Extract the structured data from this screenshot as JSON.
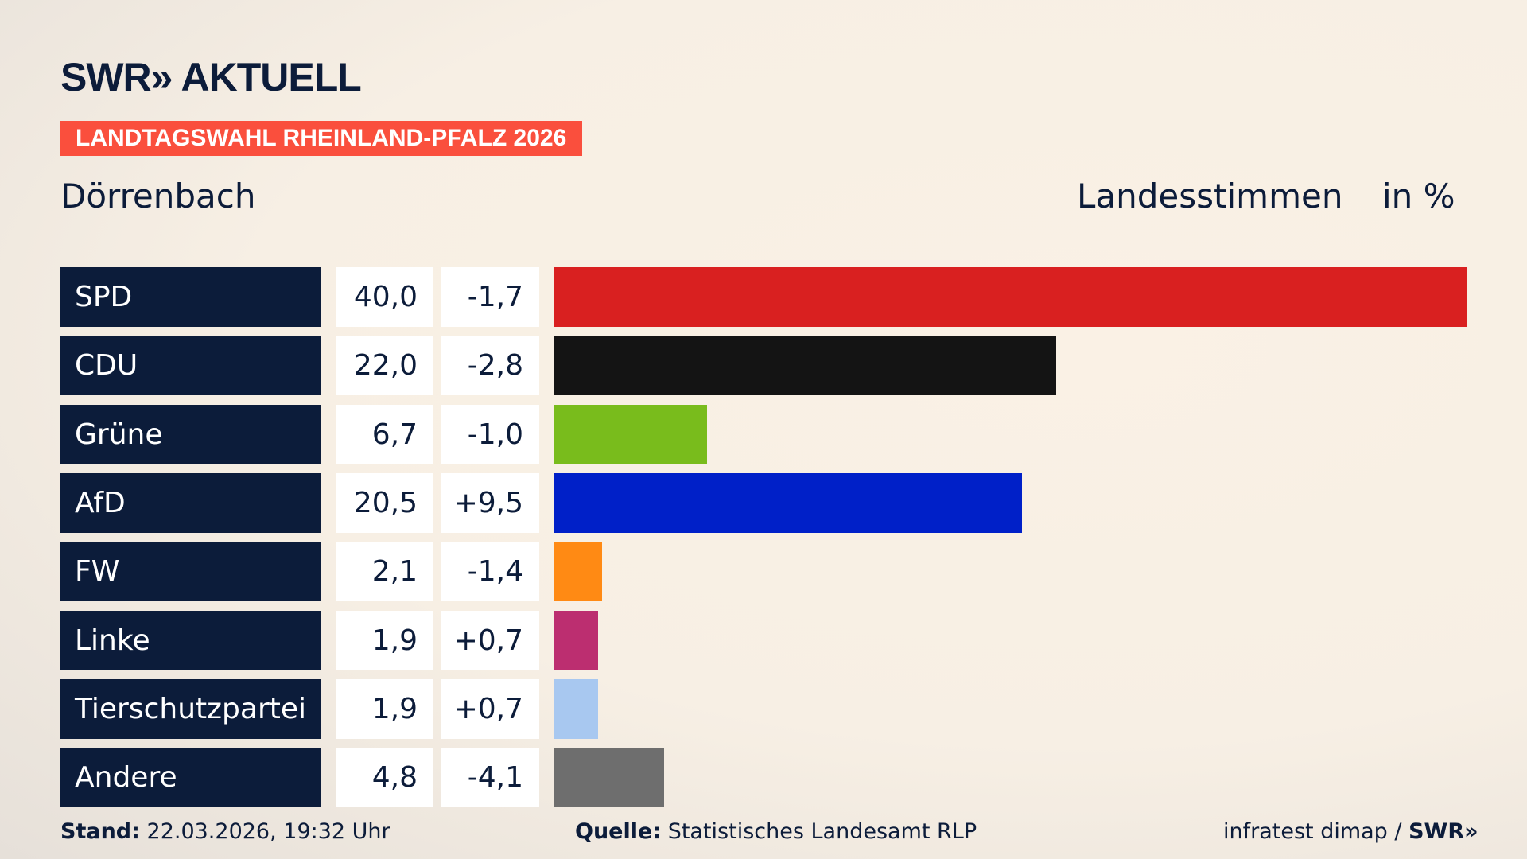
{
  "header": {
    "logo": "SWR» AKTUELL",
    "banner": "LANDTAGSWAHL RHEINLAND-PFALZ 2026",
    "place": "Dörrenbach",
    "metric": "Landesstimmen",
    "unit": "in %"
  },
  "chart_data": {
    "type": "bar",
    "orientation": "horizontal",
    "xlim": [
      0,
      40
    ],
    "categories": [
      "SPD",
      "CDU",
      "Grüne",
      "AfD",
      "FW",
      "Linke",
      "Tierschutzpartei",
      "Andere"
    ],
    "values": [
      40.0,
      22.0,
      6.7,
      20.5,
      2.1,
      1.9,
      1.9,
      4.8
    ],
    "value_labels": [
      "40,0",
      "22,0",
      "6,7",
      "20,5",
      "2,1",
      "1,9",
      "1,9",
      "4,8"
    ],
    "diff_labels": [
      "-1,7",
      "-2,8",
      "-1,0",
      "+9,5",
      "-1,4",
      "+0,7",
      "+0,7",
      "-4,1"
    ],
    "colors": [
      "#d92020",
      "#141414",
      "#79bc1c",
      "#0020c8",
      "#ff8a14",
      "#bc2e70",
      "#a8c8f0",
      "#6e6e6e"
    ]
  },
  "footer": {
    "stand_label": "Stand:",
    "stand": "22.03.2026, 19:32 Uhr",
    "source_label": "Quelle:",
    "source": "Statistisches Landesamt RLP",
    "credit": "infratest dimap /",
    "credit_logo": "SWR»"
  }
}
